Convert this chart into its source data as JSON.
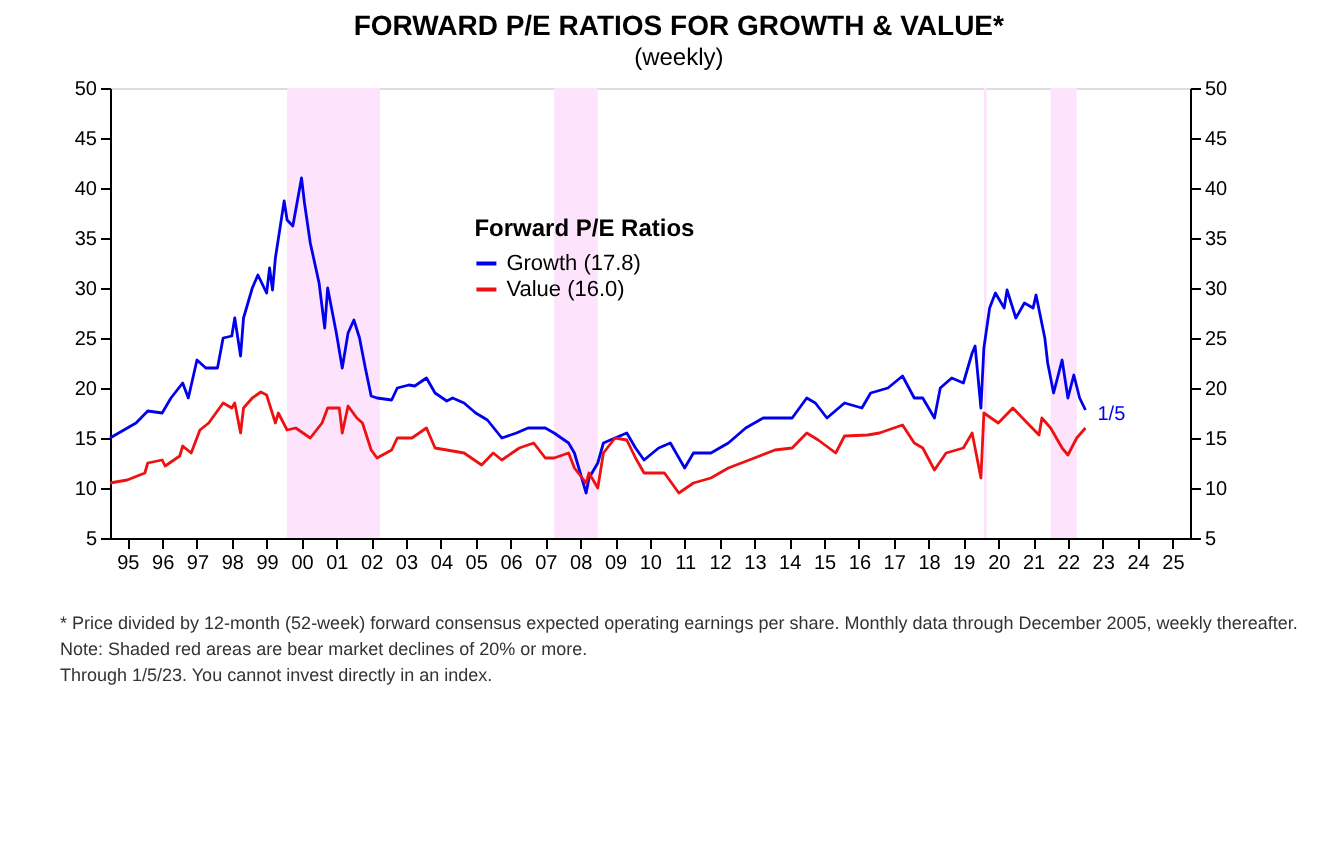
{
  "chart_data": {
    "type": "line",
    "title": "FORWARD P/E RATIOS FOR GROWTH & VALUE*",
    "subtitle": "(weekly)",
    "legend_title": "Forward P/E Ratios",
    "legend": "top",
    "grid": false,
    "marker": "none",
    "line_style": "solid",
    "xlim": [
      "1995-01",
      "2026-01"
    ],
    "xticks": [
      {
        "value": "1995-07",
        "label": "95"
      },
      {
        "value": "1996-07",
        "label": "96"
      },
      {
        "value": "1997-07",
        "label": "97"
      },
      {
        "value": "1998-07",
        "label": "98"
      },
      {
        "value": "1999-07",
        "label": "99"
      },
      {
        "value": "2000-07",
        "label": "00"
      },
      {
        "value": "2001-07",
        "label": "01"
      },
      {
        "value": "2002-07",
        "label": "02"
      },
      {
        "value": "2003-07",
        "label": "03"
      },
      {
        "value": "2004-07",
        "label": "04"
      },
      {
        "value": "2005-07",
        "label": "05"
      },
      {
        "value": "2006-07",
        "label": "06"
      },
      {
        "value": "2007-07",
        "label": "07"
      },
      {
        "value": "2008-07",
        "label": "08"
      },
      {
        "value": "2009-07",
        "label": "09"
      },
      {
        "value": "2010-07",
        "label": "10"
      },
      {
        "value": "2011-07",
        "label": "11"
      },
      {
        "value": "2012-07",
        "label": "12"
      },
      {
        "value": "2013-07",
        "label": "13"
      },
      {
        "value": "2014-07",
        "label": "14"
      },
      {
        "value": "2015-07",
        "label": "15"
      },
      {
        "value": "2016-07",
        "label": "16"
      },
      {
        "value": "2017-07",
        "label": "17"
      },
      {
        "value": "2018-07",
        "label": "18"
      },
      {
        "value": "2019-07",
        "label": "19"
      },
      {
        "value": "2020-07",
        "label": "20"
      },
      {
        "value": "2021-07",
        "label": "21"
      },
      {
        "value": "2022-07",
        "label": "22"
      },
      {
        "value": "2023-07",
        "label": "23"
      },
      {
        "value": "2024-07",
        "label": "24"
      },
      {
        "value": "2025-07",
        "label": "25"
      }
    ],
    "ylim": [
      5,
      50
    ],
    "yticks": [
      5,
      10,
      15,
      20,
      25,
      30,
      35,
      40,
      45,
      50
    ],
    "y2lim": [
      5,
      50
    ],
    "y2ticks": [
      5,
      10,
      15,
      20,
      25,
      30,
      35,
      40,
      45,
      50
    ],
    "bands": [
      {
        "axis": "x",
        "from": "2000-02",
        "to": "2002-10",
        "color": "#fde3fb"
      },
      {
        "axis": "x",
        "from": "2007-10",
        "to": "2009-01",
        "color": "#fde3fb"
      },
      {
        "axis": "x",
        "from": "2020-02",
        "to": "2020-03",
        "color": "#fde3fb"
      },
      {
        "axis": "x",
        "from": "2022-01",
        "to": "2022-10",
        "color": "#fde3fb"
      }
    ],
    "series": [
      {
        "name": "Growth (17.8)",
        "color": "#0000ee",
        "x": [
          "1995-01",
          "1995-10",
          "1996-02",
          "1996-07",
          "1996-10",
          "1997-02",
          "1997-04",
          "1997-07",
          "1997-10",
          "1998-02",
          "1998-04",
          "1998-07",
          "1998-08",
          "1998-10",
          "1998-11",
          "1999-02",
          "1999-04",
          "1999-07",
          "1999-08",
          "1999-09",
          "1999-10",
          "2000-01",
          "2000-02",
          "2000-04",
          "2000-07",
          "2000-08",
          "2000-10",
          "2001-01",
          "2001-03",
          "2001-04",
          "2001-07",
          "2001-09",
          "2001-11",
          "2002-01",
          "2002-03",
          "2002-05",
          "2002-07",
          "2002-09",
          "2003-02",
          "2003-04",
          "2003-08",
          "2003-10",
          "2004-02",
          "2004-05",
          "2004-09",
          "2004-11",
          "2005-03",
          "2005-07",
          "2005-11",
          "2006-04",
          "2006-09",
          "2007-01",
          "2007-07",
          "2007-10",
          "2008-03",
          "2008-05",
          "2008-09",
          "2008-10",
          "2009-01",
          "2009-03",
          "2009-07",
          "2009-11",
          "2010-02",
          "2010-05",
          "2010-10",
          "2011-02",
          "2011-07",
          "2011-10",
          "2012-04",
          "2012-10",
          "2013-04",
          "2013-10",
          "2014-04",
          "2014-08",
          "2015-01",
          "2015-04",
          "2015-08",
          "2016-02",
          "2016-08",
          "2016-11",
          "2017-05",
          "2017-10",
          "2018-02",
          "2018-05",
          "2018-09",
          "2018-11",
          "2019-03",
          "2019-07",
          "2019-10",
          "2019-11",
          "2020-01",
          "2020-02",
          "2020-04",
          "2020-06",
          "2020-09",
          "2020-10",
          "2021-01",
          "2021-04",
          "2021-07",
          "2021-08",
          "2021-11",
          "2021-12",
          "2022-02",
          "2022-05",
          "2022-07",
          "2022-09",
          "2022-11",
          "2023-01"
        ],
        "values": [
          15.0,
          16.5,
          17.7,
          17.5,
          19.0,
          20.5,
          19.0,
          22.8,
          22.0,
          22.0,
          25.0,
          25.2,
          27.0,
          23.2,
          27.0,
          30.0,
          31.3,
          29.5,
          32.0,
          29.8,
          33.0,
          38.7,
          36.8,
          36.2,
          41.0,
          38.5,
          34.5,
          30.5,
          26.0,
          30.0,
          25.5,
          22.0,
          25.5,
          26.8,
          25.0,
          22.0,
          19.2,
          19.0,
          18.8,
          20.0,
          20.3,
          20.2,
          21.0,
          19.5,
          18.7,
          19.0,
          18.5,
          17.5,
          16.8,
          15.0,
          15.5,
          16.0,
          16.0,
          15.5,
          14.5,
          13.5,
          9.5,
          11.0,
          12.5,
          14.5,
          15.0,
          15.5,
          14.0,
          12.8,
          14.0,
          14.5,
          12.0,
          13.5,
          13.5,
          14.5,
          16.0,
          17.0,
          17.0,
          17.0,
          19.0,
          18.5,
          17.0,
          18.5,
          18.0,
          19.5,
          20.0,
          21.2,
          19.0,
          19.0,
          17.0,
          20.0,
          21.0,
          20.5,
          23.5,
          24.2,
          18.0,
          24.0,
          28.0,
          29.5,
          28.0,
          29.8,
          27.0,
          28.5,
          28.0,
          29.3,
          25.0,
          22.5,
          19.5,
          22.8,
          19.0,
          21.3,
          19.0,
          17.8
        ]
      },
      {
        "name": "Value (16.0)",
        "color": "#ee1111",
        "x": [
          "1995-01",
          "1995-07",
          "1996-01",
          "1996-02",
          "1996-07",
          "1996-08",
          "1997-01",
          "1997-02",
          "1997-05",
          "1997-08",
          "1997-11",
          "1998-04",
          "1998-07",
          "1998-08",
          "1998-10",
          "1998-11",
          "1999-02",
          "1999-05",
          "1999-07",
          "1999-10",
          "1999-11",
          "2000-02",
          "2000-05",
          "2000-10",
          "2001-02",
          "2001-04",
          "2001-08",
          "2001-09",
          "2001-11",
          "2002-02",
          "2002-04",
          "2002-07",
          "2002-09",
          "2003-02",
          "2003-04",
          "2003-09",
          "2004-02",
          "2004-05",
          "2004-09",
          "2005-03",
          "2005-09",
          "2006-01",
          "2006-04",
          "2006-10",
          "2007-03",
          "2007-07",
          "2007-10",
          "2008-03",
          "2008-05",
          "2008-09",
          "2008-10",
          "2009-01",
          "2009-03",
          "2009-07",
          "2009-11",
          "2010-02",
          "2010-05",
          "2010-12",
          "2011-05",
          "2011-10",
          "2012-04",
          "2012-10",
          "2013-07",
          "2014-02",
          "2014-08",
          "2015-01",
          "2015-05",
          "2015-11",
          "2016-02",
          "2016-10",
          "2017-02",
          "2017-10",
          "2018-02",
          "2018-05",
          "2018-09",
          "2019-01",
          "2019-07",
          "2019-10",
          "2020-01",
          "2020-02",
          "2020-07",
          "2020-12",
          "2021-05",
          "2021-09",
          "2021-10",
          "2022-01",
          "2022-05",
          "2022-07",
          "2022-10",
          "2023-01"
        ],
        "values": [
          10.5,
          10.8,
          11.5,
          12.5,
          12.8,
          12.2,
          13.2,
          14.2,
          13.5,
          15.8,
          16.5,
          18.5,
          18.0,
          18.5,
          15.5,
          18.0,
          19.0,
          19.6,
          19.3,
          16.5,
          17.5,
          15.8,
          16.0,
          15.0,
          16.5,
          18.0,
          18.0,
          15.5,
          18.2,
          17.0,
          16.5,
          13.8,
          13.0,
          13.8,
          15.0,
          15.0,
          16.0,
          14.0,
          13.8,
          13.5,
          12.3,
          13.5,
          12.8,
          14.0,
          14.5,
          13.0,
          13.0,
          13.5,
          12.0,
          10.5,
          11.5,
          10.0,
          13.5,
          15.0,
          14.8,
          13.0,
          11.5,
          11.5,
          9.5,
          10.5,
          11.0,
          12.0,
          13.0,
          13.8,
          14.0,
          15.5,
          14.8,
          13.5,
          15.2,
          15.3,
          15.5,
          16.3,
          14.5,
          14.0,
          11.8,
          13.5,
          14.0,
          15.5,
          11.0,
          17.5,
          16.5,
          18.0,
          16.5,
          15.3,
          17.0,
          16.0,
          14.0,
          13.3,
          15.0,
          16.0
        ]
      }
    ],
    "annotations": [
      {
        "text": "1/5",
        "x": "2023-01",
        "y": 17.8
      },
      "* Price divided by 12-month (52-week) forward consensus expected operating earnings per share. Monthly data through December 2005, weekly thereafter.",
      "Note: Shaded red areas are bear market declines of 20% or more.",
      "Through 1/5/23. You cannot invest directly in an index."
    ]
  }
}
